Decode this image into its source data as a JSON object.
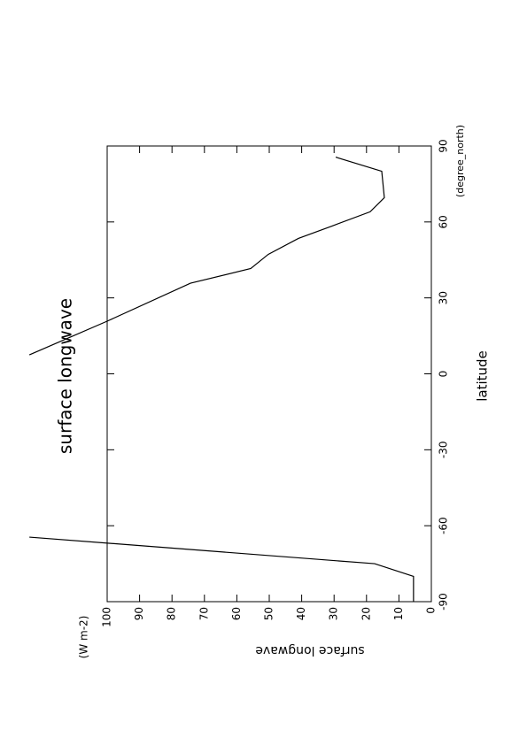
{
  "chart_data": {
    "type": "line",
    "title": "surface longwave",
    "x_label": "latitude",
    "x_units": "(degree_north)",
    "y_label": "surface longwave",
    "y_units": "(W m-2)",
    "x": [
      -90,
      -80,
      -75,
      -64.5,
      null,
      7.5,
      20.8,
      35.8,
      41.6,
      47.2,
      53.5,
      58.4,
      64,
      69.6,
      80,
      85.6
    ],
    "values": [
      5.5,
      5.5,
      17.5,
      124,
      null,
      124,
      100,
      74.3,
      55.7,
      50.3,
      41,
      30.6,
      18.9,
      14.5,
      15.3,
      29.5
    ],
    "color": "#000000",
    "xlim": [
      -90,
      90
    ],
    "xticks": [
      -90,
      -60,
      -30,
      0,
      30,
      60,
      90
    ],
    "ylim": [
      0,
      100
    ],
    "yticks": [
      0,
      10,
      20,
      30,
      40,
      50,
      60,
      70,
      80,
      90,
      100
    ]
  }
}
